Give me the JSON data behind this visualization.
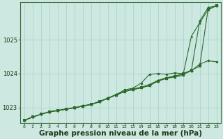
{
  "background_color": "#cce8e0",
  "grid_color": "#aad4cc",
  "line_color": "#2d6a2d",
  "xlabel": "Graphe pression niveau de la mer (hPa)",
  "xlabel_fontsize": 7.5,
  "ylabel_ticks": [
    1023,
    1024,
    1025
  ],
  "xlim": [
    -0.5,
    23.5
  ],
  "ylim": [
    1022.55,
    1026.1
  ],
  "xtick_labels": [
    "0",
    "1",
    "2",
    "3",
    "4",
    "5",
    "6",
    "7",
    "8",
    "9",
    "10",
    "11",
    "12",
    "13",
    "14",
    "15",
    "16",
    "17",
    "18",
    "19",
    "20",
    "21",
    "22",
    "23"
  ],
  "series": [
    [
      1022.62,
      1022.72,
      1022.8,
      1022.88,
      1022.92,
      1022.96,
      1023.0,
      1023.05,
      1023.1,
      1023.18,
      1023.28,
      1023.38,
      1023.48,
      1023.55,
      1023.6,
      1023.68,
      1023.8,
      1023.88,
      1023.93,
      1023.98,
      1024.08,
      1025.55,
      1025.95,
      1026.0
    ],
    [
      1022.62,
      1022.72,
      1022.8,
      1022.87,
      1022.91,
      1022.95,
      1022.99,
      1023.04,
      1023.09,
      1023.17,
      1023.27,
      1023.37,
      1023.47,
      1023.53,
      1023.58,
      1023.65,
      1023.78,
      1023.86,
      1023.9,
      1023.95,
      1025.1,
      1025.5,
      1025.88,
      1026.0
    ],
    [
      1022.62,
      1022.72,
      1022.8,
      1022.87,
      1022.91,
      1022.95,
      1022.99,
      1023.04,
      1023.09,
      1023.17,
      1023.27,
      1023.37,
      1023.47,
      1023.53,
      1023.58,
      1023.65,
      1023.78,
      1023.86,
      1023.92,
      1024.0,
      1024.1,
      1024.22,
      1025.9,
      1026.0
    ],
    [
      1022.62,
      1022.72,
      1022.8,
      1022.87,
      1022.91,
      1022.95,
      1022.99,
      1023.04,
      1023.09,
      1023.17,
      1023.28,
      1023.38,
      1023.52,
      1023.57,
      1023.72,
      1023.98,
      1024.0,
      1023.98,
      1024.02,
      1024.0,
      1024.08,
      1024.28,
      1024.38,
      1024.35
    ]
  ],
  "marker_sizes": [
    2.5,
    2.5,
    2.5,
    2.5
  ],
  "marker_styles": [
    "D",
    "^",
    "s",
    "o"
  ],
  "line_width": 0.8
}
